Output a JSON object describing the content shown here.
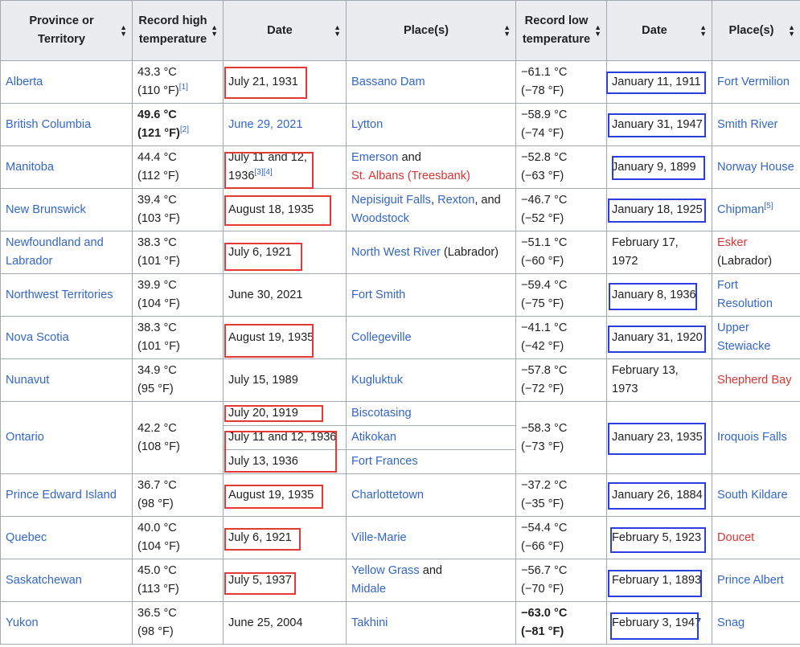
{
  "headers": {
    "province": "Province or Territory",
    "high": "Record high temperature",
    "high_date": "Date",
    "high_place": "Place(s)",
    "low": "Record low temperature",
    "low_date": "Date",
    "low_place": "Place(s)",
    "sort_glyph": "▲▼"
  },
  "rows": {
    "ab": {
      "province": "Alberta",
      "high_c": "43.3 °C",
      "high_f": "(110 °F)",
      "high_ref": "[1]",
      "high_date": "July 21, 1931",
      "place": "Bassano Dam",
      "low_c": "−61.1 °C",
      "low_f": "(−78 °F)",
      "low_date": "January 11, 1911",
      "low_place": "Fort Vermilion"
    },
    "bc": {
      "province": "British Columbia",
      "high_c": "49.6 °C",
      "high_f": "(121 °F)",
      "high_ref": "[2]",
      "high_date": "June 29, 2021",
      "place": "Lytton",
      "low_c": "−58.9 °C",
      "low_f": "(−74 °F)",
      "low_date": "January 31, 1947",
      "low_place": "Smith River"
    },
    "mb": {
      "province": "Manitoba",
      "high_c": "44.4 °C",
      "high_f": "(112 °F)",
      "high_date_1": "July 11 and 12,",
      "high_date_2": "1936",
      "high_ref_1": "[3]",
      "high_ref_2": "[4]",
      "place_1": "Emerson",
      "and": "and",
      "place_2": "St. Albans (Treesbank)",
      "low_c": "−52.8 °C",
      "low_f": "(−63 °F)",
      "low_date": "January 9, 1899",
      "low_place": "Norway House"
    },
    "nb": {
      "province": "New Brunswick",
      "high_c": "39.4 °C",
      "high_f": "(103 °F)",
      "high_date": "August 18, 1935",
      "place_1": "Nepisiguit Falls",
      "sep": ",",
      "place_2": "Rexton",
      "and": ", and",
      "place_3": "Woodstock",
      "low_c": "−46.7 °C",
      "low_f": "(−52 °F)",
      "low_date": "January 18, 1925",
      "low_place": "Chipman",
      "low_ref": "[5]"
    },
    "nl": {
      "province_1": "Newfoundland and",
      "province_2": "Labrador",
      "high_c": "38.3 °C",
      "high_f": "(101 °F)",
      "high_date": "July 6, 1921",
      "place": "North West River",
      "place_suffix": "(Labrador)",
      "low_c": "−51.1 °C",
      "low_f": "(−60 °F)",
      "low_date": "February 17, 1972",
      "low_place": "Esker",
      "low_place_suffix": "(Labrador)"
    },
    "nt": {
      "province": "Northwest Territories",
      "high_c": "39.9 °C",
      "high_f": "(104 °F)",
      "high_date": "June 30, 2021",
      "place": "Fort Smith",
      "low_c": "−59.4 °C",
      "low_f": "(−75 °F)",
      "low_date": "January 8, 1936",
      "low_place_1": "Fort",
      "low_place_2": "Resolution"
    },
    "ns": {
      "province": "Nova Scotia",
      "high_c": "38.3 °C",
      "high_f": "(101 °F)",
      "high_date": "August 19, 1935",
      "place": "Collegeville",
      "low_c": "−41.1 °C",
      "low_f": "(−42 °F)",
      "low_date": "January 31, 1920",
      "low_place_1": "Upper",
      "low_place_2": "Stewiacke"
    },
    "nu": {
      "province": "Nunavut",
      "high_c": "34.9 °C",
      "high_f": "(95 °F)",
      "high_date": "July 15, 1989",
      "place": "Kugluktuk",
      "low_c": "−57.8 °C",
      "low_f": "(−72 °F)",
      "low_date": "February 13, 1973",
      "low_place": "Shepherd Bay"
    },
    "on": {
      "province": "Ontario",
      "high_c": "42.2 °C",
      "high_f": "(108 °F)",
      "high_date_1": "July 20, 1919",
      "place_1": "Biscotasing",
      "high_date_2": "July 11 and 12, 1936",
      "place_2": "Atikokan",
      "high_date_3": "July 13, 1936",
      "place_3": "Fort Frances",
      "low_c": "−58.3 °C",
      "low_f": "(−73 °F)",
      "low_date": "January 23, 1935",
      "low_place": "Iroquois Falls"
    },
    "pe": {
      "province": "Prince Edward Island",
      "high_c": "36.7 °C",
      "high_f": "(98 °F)",
      "high_date": "August 19, 1935",
      "place": "Charlottetown",
      "low_c": "−37.2 °C",
      "low_f": "(−35 °F)",
      "low_date": "January 26, 1884",
      "low_place": "South Kildare"
    },
    "qc": {
      "province": "Quebec",
      "high_c": "40.0 °C",
      "high_f": "(104 °F)",
      "high_date": "July 6, 1921",
      "place": "Ville-Marie",
      "low_c": "−54.4 °C",
      "low_f": "(−66 °F)",
      "low_date": "February 5, 1923",
      "low_place": "Doucet"
    },
    "sk": {
      "province": "Saskatchewan",
      "high_c": "45.0 °C",
      "high_f": "(113 °F)",
      "high_date": "July 5, 1937",
      "place_1": "Yellow Grass",
      "and": "and",
      "place_2": "Midale",
      "low_c": "−56.7 °C",
      "low_f": "(−70 °F)",
      "low_date": "February 1, 1893",
      "low_place": "Prince Albert"
    },
    "yt": {
      "province": "Yukon",
      "high_c": "36.5 °C",
      "high_f": "(98 °F)",
      "high_date": "June 25, 2004",
      "place": "Takhini",
      "low_c": "−63.0 °C",
      "low_f": "(−81 °F)",
      "low_date": "February 3, 1947",
      "low_place": "Snag"
    }
  },
  "colors": {
    "link": "#3366cc",
    "redlink": "#dd3333",
    "header_bg": "#eaecf0",
    "border": "#a2a9b1",
    "annotation_red": "#e53935",
    "annotation_blue": "#2b3fe0"
  }
}
